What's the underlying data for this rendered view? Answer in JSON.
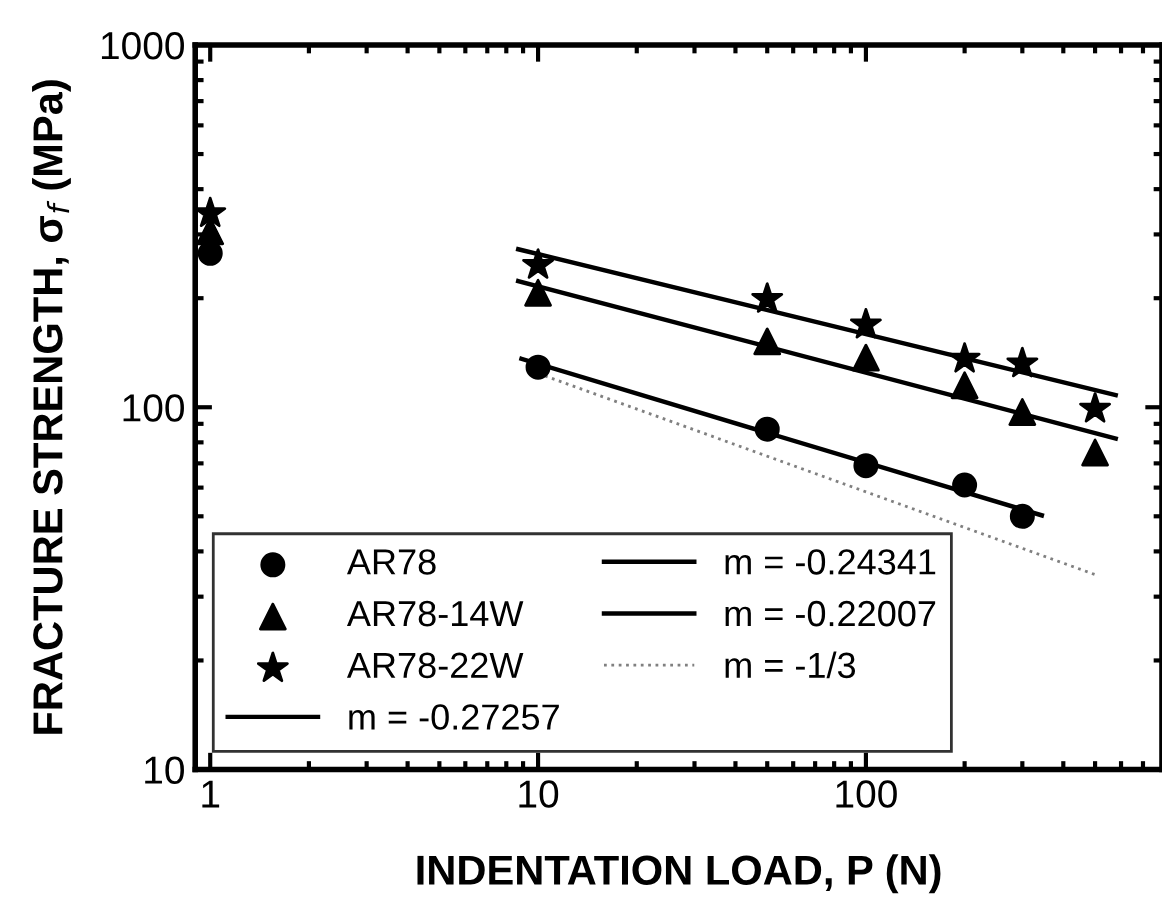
{
  "chart_data": {
    "type": "scatter",
    "xlabel": "INDENTATION LOAD, P (N)",
    "ylabel": "FRACTURE STRENGTH, σ$_{f}$ (MPa)",
    "log": "xy",
    "xlim": [
      0.9,
      800
    ],
    "ylim": [
      10,
      1000
    ],
    "xticks": [
      1,
      10,
      100
    ],
    "yticks": [
      10,
      100,
      1000
    ],
    "grid": false,
    "legend": "bottom left",
    "series": [
      {
        "name": "AR78",
        "marker": "circle",
        "color": "#000000",
        "x": [
          1,
          10,
          50,
          100,
          200,
          300
        ],
        "values": [
          266,
          129,
          87,
          69,
          61,
          50
        ]
      },
      {
        "name": "AR78-14W",
        "marker": "triangle",
        "color": "#000000",
        "x": [
          1,
          10,
          50,
          100,
          200,
          300,
          500
        ],
        "values": [
          306,
          207,
          152,
          137,
          115,
          97,
          75
        ]
      },
      {
        "name": "AR78-22W",
        "marker": "star",
        "color": "#000000",
        "x": [
          1,
          10,
          50,
          100,
          200,
          300,
          500
        ],
        "values": [
          343,
          247,
          199,
          169,
          136,
          132,
          99
        ]
      },
      {
        "name": "m = -0.27257",
        "type": "line",
        "marker": "none",
        "line_style": "solid",
        "color": "#000000",
        "x": [
          8.9,
          344
        ],
        "values": [
          136,
          50.3
        ]
      },
      {
        "name": "m = -0.24341",
        "type": "line",
        "marker": "none",
        "line_style": "solid",
        "color": "#000000",
        "x": [
          8.7,
          578
        ],
        "values": [
          223,
          82
        ]
      },
      {
        "name": "m = -0.22007",
        "type": "line",
        "marker": "none",
        "line_style": "solid",
        "color": "#000000",
        "x": [
          8.7,
          578
        ],
        "values": [
          273,
          108
        ]
      },
      {
        "name": "m = -1/3",
        "type": "line",
        "marker": "none",
        "line_style": "dotted",
        "color": "#808080",
        "x": [
          10,
          505
        ],
        "values": [
          124,
          34.4
        ]
      }
    ]
  }
}
